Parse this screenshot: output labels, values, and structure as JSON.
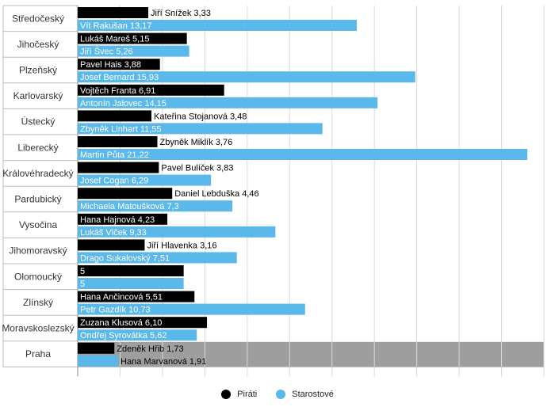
{
  "chart_data": {
    "type": "bar",
    "orientation": "horizontal",
    "title": "",
    "xlabel": "",
    "ylabel": "",
    "xlim": [
      0,
      22
    ],
    "grid": true,
    "legend_position": "bottom-center",
    "highlight_category": "Praha",
    "highlight_color": "#9e9e9e",
    "categories": [
      "Středočeský",
      "Jihočeský",
      "Plzeňský",
      "Karlovarský",
      "Ústecký",
      "Liberecký",
      "Královéhradecký",
      "Pardubický",
      "Vysočina",
      "Jihomoravský",
      "Olomoucký",
      "Zlínský",
      "Moravskoslezský",
      "Praha"
    ],
    "series": [
      {
        "name": "Piráti",
        "color": "#000000",
        "values": [
          3.33,
          5.15,
          3.88,
          6.91,
          3.48,
          3.76,
          3.83,
          4.46,
          4.23,
          3.16,
          5,
          5.51,
          6.1,
          1.73
        ],
        "labels": [
          "Jiří Snížek 3,33",
          "Lukáš Mareš 5,15",
          "Pavel Hais 3,88",
          "Vojtěch Franta 6,91",
          "Kateřina Stojanová 3,48",
          "Zbyněk Miklík 3,76",
          "Pavel Bulíček 3,83",
          "Daniel Lebduška 4,46",
          "Hana Hajnová 4,23",
          "Jiří Hlavenka 3,16",
          "5",
          "Hana Ančincová 5,51",
          "Zuzana Klusová 6,10",
          "Zdeněk Hřib 1,73"
        ]
      },
      {
        "name": "Starostové",
        "color": "#5bb8ea",
        "values": [
          13.17,
          5.26,
          15.93,
          14.15,
          11.55,
          21.22,
          6.29,
          7.3,
          9.33,
          7.51,
          5,
          10.73,
          5.62,
          1.91
        ],
        "labels": [
          "Vít Rakušan 13,17",
          "Jiří Švec 5,26",
          "Josef Bernard 15,93",
          "Antonín Jalovec 14,15",
          "Zbyněk Linhart 11,55",
          "Martin Půta 21,22",
          "Josef Cogan 6,29",
          "Michaela Matoušková 7,3",
          "Lukáš Vlček 9,33",
          "Drago Sukalovský 7,51",
          "5",
          "Petr Gazdík 10,73",
          "Ondřej Syrovátka 5,62",
          "Hana Marvanová 1,91"
        ]
      }
    ]
  },
  "legend": {
    "items": [
      {
        "label": "Piráti",
        "color": "#000000"
      },
      {
        "label": "Starostové",
        "color": "#5bb8ea"
      }
    ]
  }
}
